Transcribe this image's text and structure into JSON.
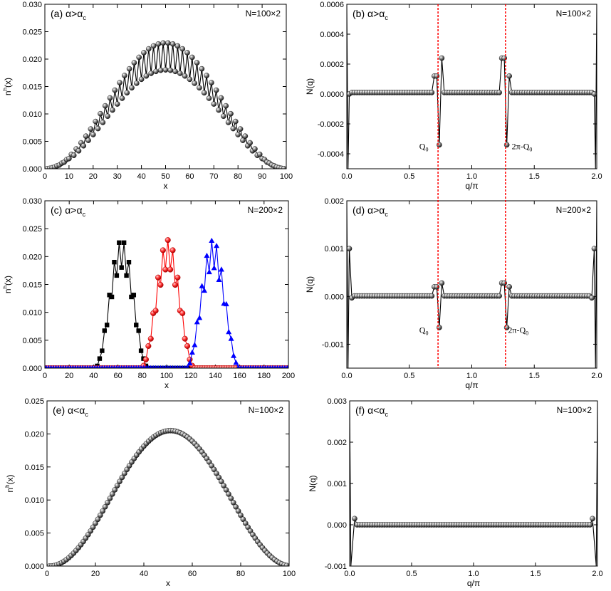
{
  "chart_data": [
    {
      "id": "a",
      "type": "line",
      "panel_label": "(a) α>α",
      "panel_sub": "c",
      "size_label": "N=100×2",
      "xlabel": "x",
      "ylabel": "n",
      "ylabel_sup": "h",
      "ylabel_tail": "(x)",
      "xlim": [
        0,
        100
      ],
      "ylim": [
        0,
        0.03
      ],
      "xticks": [
        0,
        10,
        20,
        30,
        40,
        50,
        60,
        70,
        80,
        90,
        100
      ],
      "yticks": [
        0,
        0.005,
        0.01,
        0.015,
        0.02,
        0.025,
        0.03
      ],
      "ytick_labels": [
        "0.000",
        "0.005",
        "0.010",
        "0.015",
        "0.020",
        "0.025",
        "0.030"
      ],
      "series": [
        {
          "color": "#000000",
          "marker": "sphere",
          "generator": "stripe",
          "params": {
            "x0": 1,
            "x1": 99,
            "step": 1,
            "center": 50,
            "width": 50,
            "amp": 0.0205,
            "osc": 0.12
          }
        }
      ]
    },
    {
      "id": "b",
      "type": "line",
      "panel_label": "(b) α>α",
      "panel_sub": "c",
      "size_label": "N=100×2",
      "xlabel": "q/π",
      "ylabel": "N(q)",
      "xlim": [
        0,
        2
      ],
      "ylim": [
        -0.0005,
        0.0006
      ],
      "xticks": [
        0,
        0.5,
        1,
        1.5,
        2
      ],
      "xtick_labels": [
        "0.0",
        "0.5",
        "1.0",
        "1.5",
        "2.0"
      ],
      "yticks": [
        -0.0004,
        -0.0002,
        0,
        0.0002,
        0.0004,
        0.0006
      ],
      "ytick_labels": [
        "-0.0004",
        "-0.0002",
        "0.0000",
        "0.0002",
        "0.0004",
        "0.0006"
      ],
      "series": [
        {
          "color": "#000000",
          "marker": "sphere",
          "generator": "structure",
          "params": {
            "n": 100,
            "base": 1e-05,
            "edge_out": 0.0,
            "edge_in": 1e-05,
            "near_lo": 0.00012,
            "peak_lo": 0.00024,
            "dip": -0.00034,
            "q0": 0.73,
            "q1": 1.27,
            "end_low": -0.0005,
            "end_high": 0.0006
          }
        }
      ],
      "annotations": [
        {
          "text": "Q",
          "sub": "0",
          "x": 0.58,
          "y": -0.00035
        },
        {
          "text": "2π-Q",
          "sub": "0",
          "x": 1.32,
          "y": -0.00035
        }
      ]
    },
    {
      "id": "c",
      "type": "line",
      "panel_label": "(c) α>α",
      "panel_sub": "c",
      "size_label": "N=200×2",
      "xlabel": "x",
      "ylabel": "n",
      "ylabel_sup": "h",
      "ylabel_tail": "(x)",
      "xlim": [
        0,
        200
      ],
      "ylim": [
        0,
        0.03
      ],
      "xticks": [
        0,
        20,
        40,
        60,
        80,
        100,
        120,
        140,
        160,
        180,
        200
      ],
      "yticks": [
        0,
        0.005,
        0.01,
        0.015,
        0.02,
        0.025,
        0.03
      ],
      "ytick_labels": [
        "0.000",
        "0.005",
        "0.010",
        "0.015",
        "0.020",
        "0.025",
        "0.030"
      ],
      "series": [
        {
          "color": "#000000",
          "marker": "square",
          "generator": "stripe",
          "params": {
            "x0": 1,
            "x1": 199,
            "step": 2,
            "center": 63,
            "width": 22,
            "amp": 0.0205,
            "osc": 0.12
          }
        },
        {
          "color": "#ff0000",
          "marker": "circle",
          "generator": "stripe",
          "params": {
            "x0": 1,
            "x1": 199,
            "step": 2,
            "center": 101,
            "width": 22,
            "amp": 0.0205,
            "osc": 0.12
          }
        },
        {
          "color": "#0000ff",
          "marker": "triangle",
          "generator": "stripe",
          "params": {
            "x0": 1,
            "x1": 199,
            "step": 2,
            "center": 138,
            "width": 22,
            "amp": 0.0205,
            "osc": 0.12
          }
        }
      ]
    },
    {
      "id": "d",
      "type": "line",
      "panel_label": "(d) α>α",
      "panel_sub": "c",
      "size_label": "N=200×2",
      "xlabel": "q/π",
      "ylabel": "N(q)",
      "xlim": [
        0,
        2
      ],
      "ylim": [
        -0.0015,
        0.002
      ],
      "xticks": [
        0,
        0.5,
        1,
        1.5,
        2
      ],
      "xtick_labels": [
        "0.0",
        "0.5",
        "1.0",
        "1.5",
        "2.0"
      ],
      "yticks": [
        -0.001,
        0,
        0.001,
        0.002
      ],
      "ytick_labels": [
        "-0.001",
        "0.000",
        "0.001",
        "0.002"
      ],
      "series": [
        {
          "color": "#000000",
          "marker": "sphere",
          "generator": "structure",
          "params": {
            "n": 100,
            "base": 1e-05,
            "edge_out": 0.001,
            "edge_in": -3e-05,
            "near_lo": 0.0002,
            "peak_lo": 0.00028,
            "dip": -0.00065,
            "q0": 0.73,
            "q1": 1.27,
            "end_low": -0.0015,
            "end_high": 0.002
          }
        }
      ],
      "annotations": [
        {
          "text": "Q",
          "sub": "0",
          "x": 0.58,
          "y": -0.0007
        },
        {
          "text": "2π-Q",
          "sub": "0",
          "x": 1.29,
          "y": -0.0007
        }
      ]
    },
    {
      "id": "e",
      "type": "line",
      "panel_label": "(e) α<α",
      "panel_sub": "c",
      "size_label": "N=100×2",
      "xlabel": "x",
      "ylabel": "n",
      "ylabel_sup": "h",
      "ylabel_tail": "(x)",
      "xlim": [
        0,
        100
      ],
      "ylim": [
        0,
        0.025
      ],
      "xticks": [
        0,
        20,
        40,
        60,
        80,
        100
      ],
      "yticks": [
        0,
        0.005,
        0.01,
        0.015,
        0.02,
        0.025
      ],
      "ytick_labels": [
        "0.000",
        "0.005",
        "0.010",
        "0.015",
        "0.020",
        "0.025"
      ],
      "series": [
        {
          "color": "#000000",
          "marker": "sphere",
          "generator": "smooth",
          "params": {
            "x0": 1,
            "x1": 99,
            "step": 1,
            "center": 51,
            "width": 50,
            "amp": 0.0205
          }
        }
      ]
    },
    {
      "id": "f",
      "type": "line",
      "panel_label": "(f) α<α",
      "panel_sub": "c",
      "size_label": "N=100×2",
      "xlabel": "q/π",
      "ylabel": "N(q)",
      "xlim": [
        0,
        2
      ],
      "ylim": [
        -0.001,
        0.003
      ],
      "xticks": [
        0,
        0.5,
        1,
        1.5,
        2
      ],
      "xtick_labels": [
        "0.0",
        "0.5",
        "1.0",
        "1.5",
        "2.0"
      ],
      "yticks": [
        -0.001,
        0,
        0.001,
        0.002,
        0.003
      ],
      "ytick_labels": [
        "-0.001",
        "0.000",
        "0.001",
        "0.002",
        "0.003"
      ],
      "series": [
        {
          "color": "#000000",
          "marker": "sphere",
          "generator": "flat",
          "params": {
            "n": 100,
            "base": 0.0,
            "edge": 0.00015,
            "end_low": -0.001,
            "end_high": 0.003
          }
        }
      ]
    }
  ],
  "reference_lines": {
    "q": [
      0.73,
      1.27
    ],
    "color": "#ff0000",
    "style": "dotted"
  }
}
